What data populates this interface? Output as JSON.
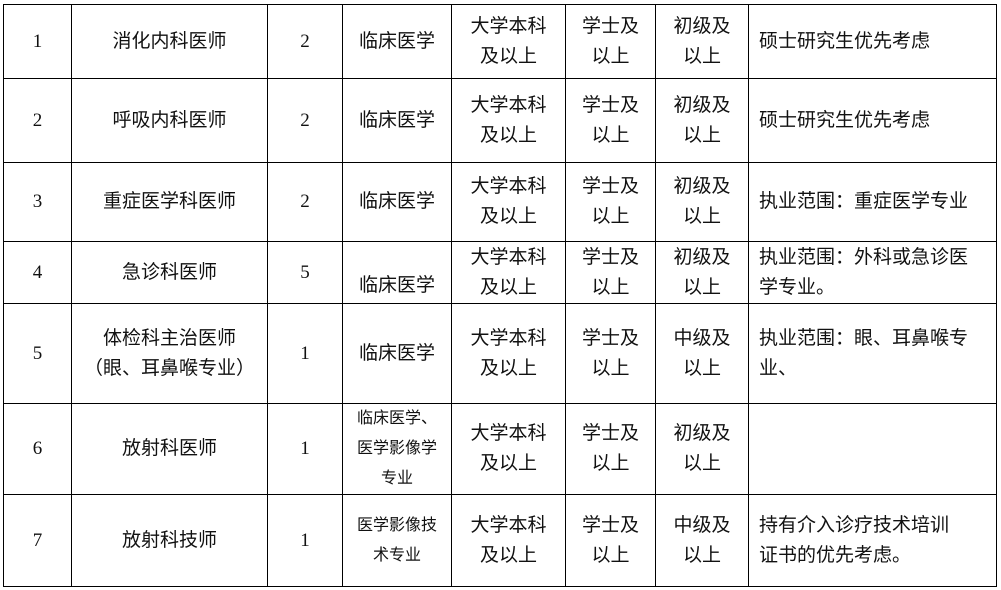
{
  "rows": [
    {
      "no": "1",
      "position": "消化内科医师",
      "count": "2",
      "major": "临床医学",
      "education": "大学本科\n及以上",
      "degree": "学士及\n以上",
      "title": "初级及\n以上",
      "remark": "硕士研究生优先考虑"
    },
    {
      "no": "2",
      "position": "呼吸内科医师",
      "count": "2",
      "major": "临床医学",
      "education": "大学本科\n及以上",
      "degree": "学士及\n以上",
      "title": "初级及\n以上",
      "remark": "硕士研究生优先考虑"
    },
    {
      "no": "3",
      "position": "重症医学科医师",
      "count": "2",
      "major": "临床医学",
      "education": "大学本科\n及以上",
      "degree": "学士及\n以上",
      "title": "初级及\n以上",
      "remark": "执业范围：重症医学专业"
    },
    {
      "no": "4",
      "position": "急诊科医师",
      "count": "5",
      "major": "临床医学",
      "education": "大学本科\n及以上",
      "degree": "学士及\n以上",
      "title": "初级及\n以上",
      "remark": "执业范围：外科或急诊医\n学专业。"
    },
    {
      "no": "5",
      "position": "体检科主治医师\n（眼、耳鼻喉专业）",
      "count": "1",
      "major": "临床医学",
      "education": "大学本科\n及以上",
      "degree": "学士及\n以上",
      "title": "中级及\n以上",
      "remark": "执业范围：眼、耳鼻喉专\n业、"
    },
    {
      "no": "6",
      "position": "放射科医师",
      "count": "1",
      "major": "临床医学、\n医学影像学\n专业",
      "education": "大学本科\n及以上",
      "degree": "学士及\n以上",
      "title": "初级及\n以上",
      "remark": ""
    },
    {
      "no": "7",
      "position": "放射科技师",
      "count": "1",
      "major": "医学影像技\n术专业",
      "education": "大学本科\n及以上",
      "degree": "学士及\n以上",
      "title": "中级及\n以上",
      "remark": "持有介入诊疗技术培训\n证书的优先考虑。"
    }
  ]
}
